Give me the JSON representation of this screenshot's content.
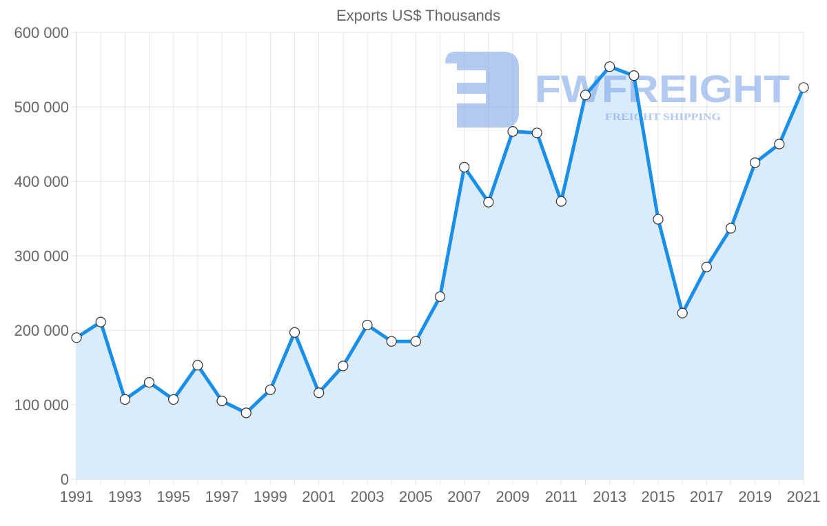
{
  "chart_data": {
    "type": "area",
    "title": "Exports US$ Thousands",
    "xlabel": "",
    "ylabel": "",
    "x": [
      1991,
      1992,
      1993,
      1994,
      1995,
      1996,
      1997,
      1998,
      1999,
      2000,
      2001,
      2002,
      2003,
      2004,
      2005,
      2006,
      2007,
      2008,
      2009,
      2010,
      2011,
      2012,
      2013,
      2014,
      2015,
      2016,
      2017,
      2018,
      2019,
      2020,
      2021
    ],
    "series": [
      {
        "name": "Exports",
        "values": [
          190000,
          211000,
          107000,
          130000,
          107000,
          153000,
          105000,
          89000,
          120000,
          197000,
          116000,
          152000,
          207000,
          185000,
          185000,
          245000,
          419000,
          372000,
          467000,
          465000,
          373000,
          516000,
          554000,
          542000,
          349000,
          223000,
          285000,
          337000,
          425000,
          450000,
          526000
        ]
      }
    ],
    "ylim": [
      0,
      600000
    ],
    "yticks": [
      0,
      100000,
      200000,
      300000,
      400000,
      500000,
      600000
    ],
    "ytick_labels": [
      "0",
      "100 000",
      "200 000",
      "300 000",
      "400 000",
      "500 000",
      "600 000"
    ],
    "xtick_labels": [
      "1991",
      "1993",
      "1995",
      "1997",
      "1999",
      "2001",
      "2003",
      "2005",
      "2007",
      "2009",
      "2011",
      "2013",
      "2015",
      "2017",
      "2019",
      "2021"
    ],
    "grid": true,
    "legend": "none",
    "colors": {
      "line": "#1a8fea",
      "fill": "#d8ebfc",
      "marker_fill": "#ffffff",
      "marker_stroke": "#333333",
      "grid": "#e5e5e5"
    }
  },
  "watermark": {
    "brand": "FWFREIGHT",
    "tagline": "FREIGHT SHIPPING",
    "logo_icon": "fw-logo-icon"
  }
}
